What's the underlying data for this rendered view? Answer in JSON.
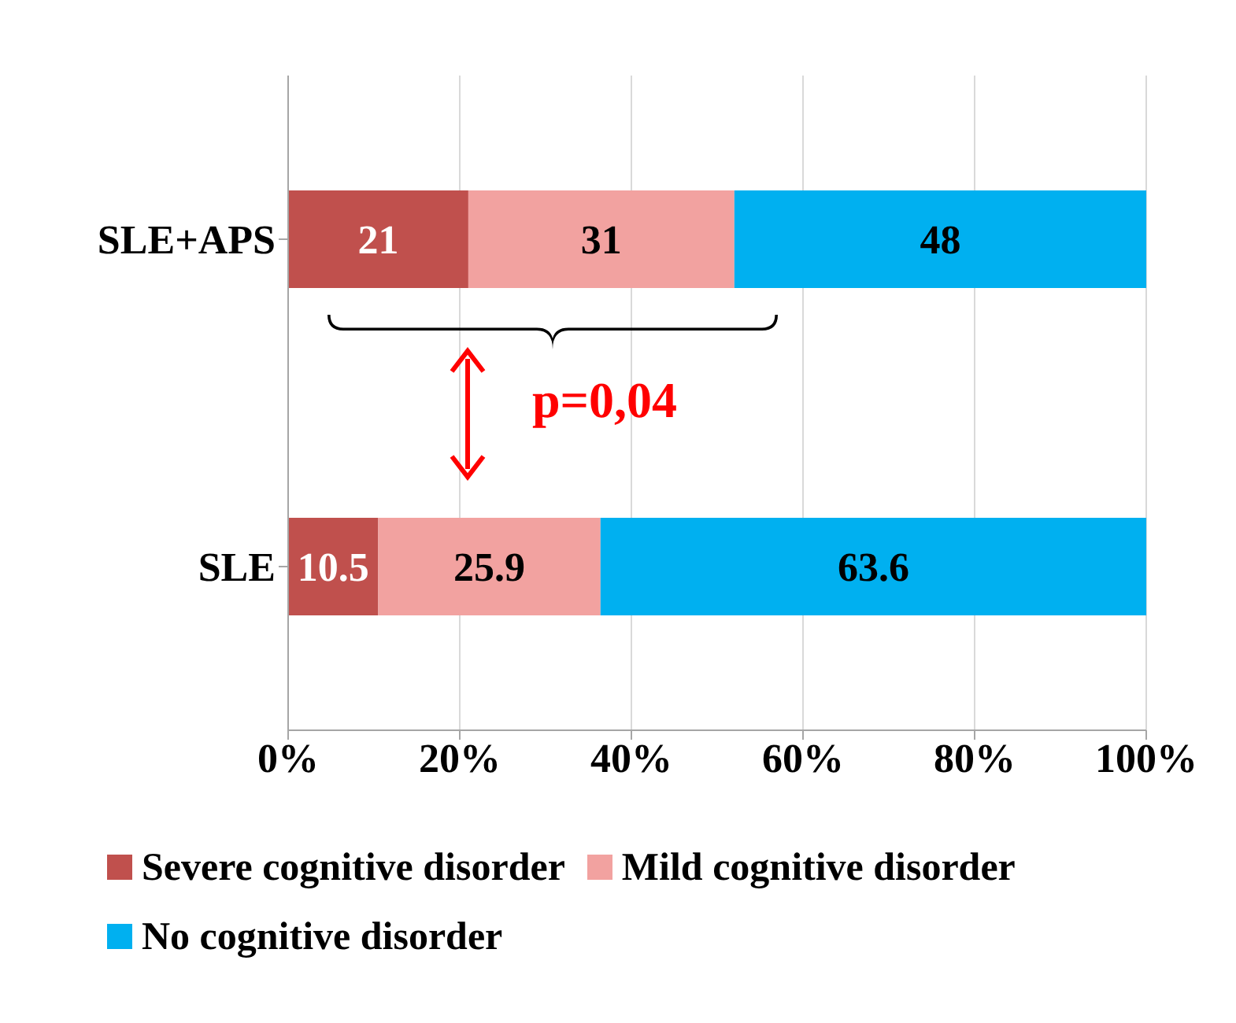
{
  "chart_data": {
    "type": "bar",
    "orientation": "horizontal",
    "stacked": true,
    "categories": [
      "SLE+APS",
      "SLE"
    ],
    "series": [
      {
        "name": "Severe cognitive disorder",
        "color": "#c0504d",
        "values": [
          21,
          10.5
        ]
      },
      {
        "name": "Mild cognitive disorder",
        "color": "#f2a2a0",
        "values": [
          31,
          25.9
        ]
      },
      {
        "name": "No cognitive disorder",
        "color": "#00b0f0",
        "values": [
          48,
          63.6
        ]
      }
    ],
    "xlim": [
      0,
      100
    ],
    "xticks": [
      {
        "value": 0,
        "label": "0%"
      },
      {
        "value": 20,
        "label": "20%"
      },
      {
        "value": 40,
        "label": "40%"
      },
      {
        "value": 60,
        "label": "60%"
      },
      {
        "value": 80,
        "label": "80%"
      },
      {
        "value": 100,
        "label": "100%"
      }
    ],
    "data_labels": true,
    "grid": "x",
    "legend": "bottom",
    "annotations": [
      "p=0,04"
    ]
  }
}
